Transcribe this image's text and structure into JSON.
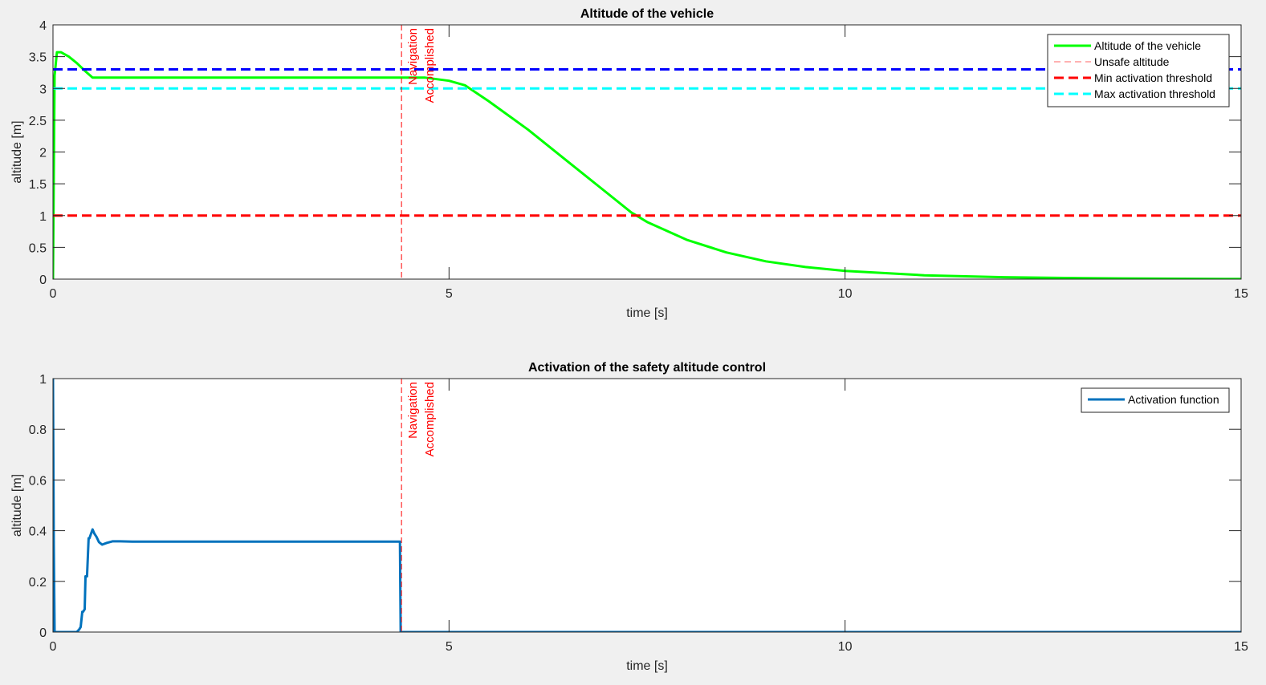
{
  "colors": {
    "background": "#f0f0f0",
    "axes_bg": "#ffffff",
    "axis": "#262626",
    "altitude": "#00ff00",
    "unsafe": "#ff6666",
    "min_threshold": "#ff0000",
    "max_threshold": "#00ffff",
    "blue_line": "#0000ff",
    "navigation": "#ff0000",
    "activation": "#0072bd"
  },
  "chart_data": [
    {
      "type": "line",
      "title": "Altitude of the vehicle",
      "xlabel": "time [s]",
      "ylabel": "altitude [m]",
      "xlim": [
        0,
        15
      ],
      "ylim": [
        0,
        4
      ],
      "xticks": [
        "0",
        "5",
        "10",
        "15"
      ],
      "yticks": [
        "0",
        "0.5",
        "1",
        "1.5",
        "2",
        "2.5",
        "3",
        "3.5",
        "4"
      ],
      "grid": false,
      "legend_position": "top-right",
      "series": [
        {
          "name": "Altitude of the vehicle",
          "color": "#00ff00",
          "style": "solid",
          "x": [
            0,
            0.02,
            0.05,
            0.1,
            0.2,
            0.3,
            0.4,
            0.5,
            1,
            2,
            3,
            4,
            4.4,
            4.7,
            5,
            5.2,
            5.5,
            6,
            6.5,
            7,
            7.3,
            7.5,
            8,
            8.5,
            9,
            9.5,
            10,
            11,
            12,
            13,
            14,
            15
          ],
          "y": [
            0,
            3.2,
            3.57,
            3.57,
            3.5,
            3.4,
            3.28,
            3.17,
            3.17,
            3.17,
            3.17,
            3.17,
            3.17,
            3.17,
            3.12,
            3.05,
            2.8,
            2.35,
            1.85,
            1.35,
            1.05,
            0.9,
            0.62,
            0.42,
            0.28,
            0.19,
            0.13,
            0.06,
            0.03,
            0.015,
            0.007,
            0.003
          ]
        },
        {
          "name": "Unsafe altitude",
          "color": "#ff6666",
          "style": "thin-dashed",
          "x": [
            0,
            15
          ],
          "y": [
            0,
            0
          ]
        },
        {
          "name": "Min activation threshold",
          "color": "#ff0000",
          "style": "dashed",
          "x": [
            0,
            15
          ],
          "y": [
            1,
            1
          ]
        },
        {
          "name": "Max activation threshold",
          "color": "#00ffff",
          "style": "dashed",
          "x": [
            0,
            15
          ],
          "y": [
            3,
            3
          ]
        },
        {
          "color": "#0000ff",
          "style": "dashed",
          "x": [
            0,
            15
          ],
          "y": [
            3.3,
            3.3
          ]
        }
      ],
      "annotations": [
        {
          "type": "vline",
          "x": 4.4,
          "color": "#ff0000",
          "lines": [
            "Navigation",
            "Accomplished"
          ]
        }
      ]
    },
    {
      "type": "line",
      "title": "Activation of the safety altitude control",
      "xlabel": "time [s]",
      "ylabel": "altitude [m]",
      "xlim": [
        0,
        15
      ],
      "ylim": [
        0,
        1
      ],
      "xticks": [
        "0",
        "5",
        "10",
        "15"
      ],
      "yticks": [
        "0",
        "0.2",
        "0.4",
        "0.6",
        "0.8",
        "1"
      ],
      "grid": false,
      "legend_position": "top-right",
      "series": [
        {
          "name": "Activation function",
          "color": "#0072bd",
          "style": "solid",
          "x": [
            0,
            0.01,
            0.02,
            0.03,
            0.3,
            0.33,
            0.35,
            0.37,
            0.38,
            0.4,
            0.41,
            0.43,
            0.45,
            0.46,
            0.5,
            0.52,
            0.55,
            0.58,
            0.62,
            0.68,
            0.75,
            0.85,
            1,
            2,
            3,
            4,
            4.38,
            4.39,
            15
          ],
          "y": [
            1,
            0.35,
            0,
            0,
            0,
            0.01,
            0.02,
            0.08,
            0.08,
            0.09,
            0.22,
            0.22,
            0.37,
            0.37,
            0.405,
            0.39,
            0.375,
            0.355,
            0.345,
            0.352,
            0.358,
            0.358,
            0.357,
            0.357,
            0.357,
            0.357,
            0.357,
            0,
            0
          ]
        }
      ],
      "annotations": [
        {
          "type": "vline",
          "x": 4.4,
          "color": "#ff0000",
          "lines": [
            "Navigation",
            "Accomplished"
          ]
        }
      ]
    }
  ]
}
